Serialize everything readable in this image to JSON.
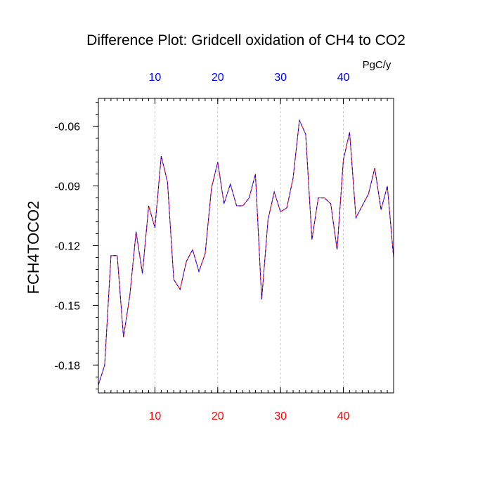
{
  "chart_data": {
    "type": "line",
    "title": "Difference Plot: Gridcell oxidation of CH4 to CO2",
    "ylabel": "FCH4TOCO2",
    "units": "PgC/y",
    "xlim": [
      1,
      48
    ],
    "ylim": [
      -0.194,
      -0.046
    ],
    "x_ticks": [
      10,
      20,
      30,
      40
    ],
    "x_tick_labels": [
      "10",
      "20",
      "30",
      "40"
    ],
    "y_ticks": [
      -0.06,
      -0.09,
      -0.12,
      -0.15,
      -0.18
    ],
    "y_tick_labels": [
      "-0.06",
      "-0.09",
      "-0.12",
      "-0.15",
      "-0.18"
    ],
    "grid": "vertical dashed lines at major x ticks",
    "colors": {
      "bottom_tick_labels": "#ff0000",
      "top_tick_labels": "#0000ff",
      "series_a": "#ff0000",
      "series_b": "#0000ff"
    },
    "x": [
      1,
      2,
      3,
      4,
      5,
      6,
      7,
      8,
      9,
      10,
      11,
      12,
      13,
      14,
      15,
      16,
      17,
      18,
      19,
      20,
      21,
      22,
      23,
      24,
      25,
      26,
      27,
      28,
      29,
      30,
      31,
      32,
      33,
      34,
      35,
      36,
      37,
      38,
      39,
      40,
      41,
      42,
      43,
      44,
      45,
      46,
      47,
      48
    ],
    "series": [
      {
        "values": [
          -0.19,
          -0.18,
          -0.125,
          -0.125,
          -0.166,
          -0.145,
          -0.113,
          -0.134,
          -0.1,
          -0.111,
          -0.075,
          -0.088,
          -0.137,
          -0.142,
          -0.128,
          -0.122,
          -0.133,
          -0.124,
          -0.091,
          -0.078,
          -0.099,
          -0.089,
          -0.1,
          -0.1,
          -0.096,
          -0.084,
          -0.147,
          -0.107,
          -0.093,
          -0.103,
          -0.101,
          -0.086,
          -0.057,
          -0.064,
          -0.117,
          -0.096,
          -0.096,
          -0.099,
          -0.122,
          -0.077,
          -0.063,
          -0.106,
          -0.1,
          -0.094,
          -0.081,
          -0.102,
          -0.09,
          -0.126
        ]
      },
      {
        "values": [
          -0.19,
          -0.18,
          -0.125,
          -0.125,
          -0.166,
          -0.145,
          -0.113,
          -0.134,
          -0.1,
          -0.111,
          -0.075,
          -0.088,
          -0.137,
          -0.142,
          -0.128,
          -0.122,
          -0.133,
          -0.124,
          -0.091,
          -0.078,
          -0.099,
          -0.089,
          -0.1,
          -0.1,
          -0.096,
          -0.084,
          -0.147,
          -0.107,
          -0.093,
          -0.103,
          -0.101,
          -0.086,
          -0.057,
          -0.064,
          -0.117,
          -0.096,
          -0.096,
          -0.099,
          -0.122,
          -0.077,
          -0.063,
          -0.106,
          -0.1,
          -0.094,
          -0.081,
          -0.102,
          -0.09,
          -0.126
        ]
      }
    ]
  }
}
